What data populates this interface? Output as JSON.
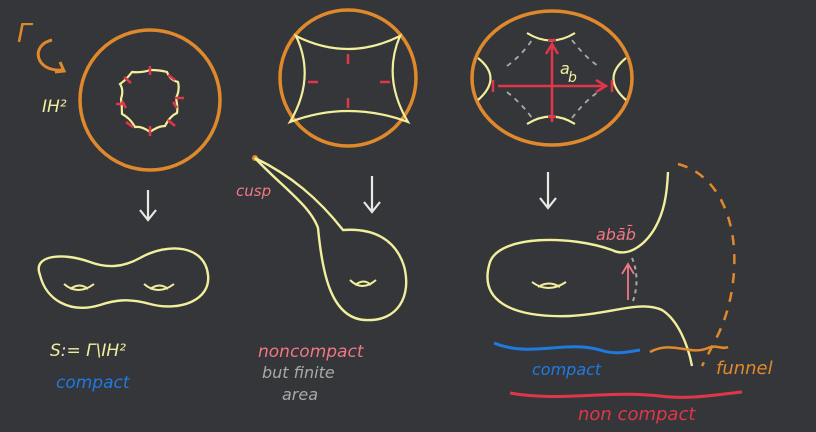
{
  "colors": {
    "board": "#35363a",
    "orange": "#e0892c",
    "yellow": "#f2ef9c",
    "red": "#e0364a",
    "pink": "#f07784",
    "blue": "#1f7ae0",
    "white": "#e9e9e4",
    "grey": "#a9a9a6"
  },
  "panel_left": {
    "group_label": "Γ",
    "space_label": "IH²",
    "quotient_label": "S:= Γ\\IH²",
    "status_label": "compact"
  },
  "panel_middle": {
    "cusp_label": "cusp",
    "status_label": "noncompact",
    "caption_line1": "but finite",
    "caption_line2": "area"
  },
  "panel_right": {
    "gen_a": "a",
    "gen_b": "b",
    "commutator_label": "abāb̄",
    "compact_part_label": "compact",
    "funnel_label": "funnel",
    "noncompact_label": "non compact"
  },
  "icons": [
    "rotation-arrow-icon",
    "down-arrow-icon"
  ]
}
